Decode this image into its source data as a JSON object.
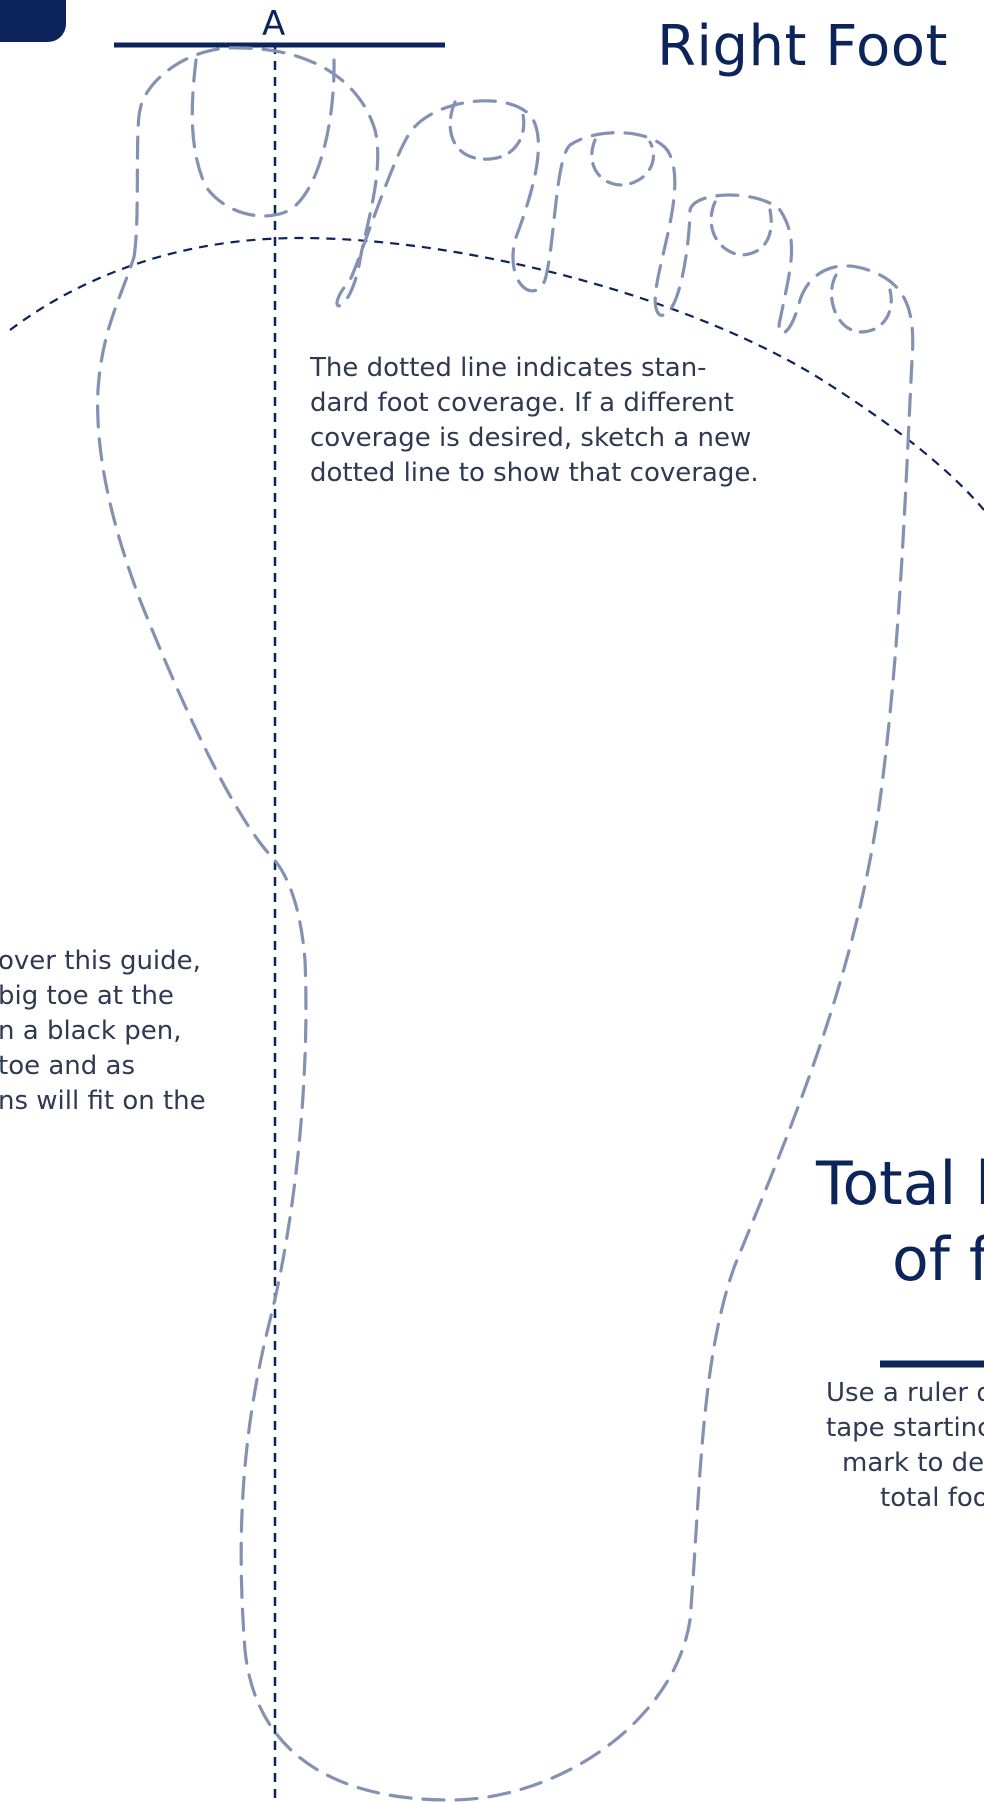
{
  "header": {
    "title": "Right Foot",
    "marker": "A"
  },
  "notes": {
    "coverage": [
      "The dotted line indicates stan-",
      "dard foot coverage.  If a different",
      "coverage is desired, sketch a new",
      "dotted line to show that coverage."
    ],
    "trace": [
      " over this guide,",
      " big toe at the",
      "n a black pen,",
      " toe and as",
      "ns will fit on the"
    ]
  },
  "measurement": {
    "title_lines": [
      "Total l",
      "of f"
    ],
    "instructions": [
      "Use a ruler o",
      "tape startinc",
      "mark to de",
      "total foo"
    ]
  },
  "colors": {
    "navy": "#0c2459",
    "outline": "#8391b3",
    "text": "#2f3a52"
  },
  "icons": {
    "logo": "brand-logo-icon"
  }
}
